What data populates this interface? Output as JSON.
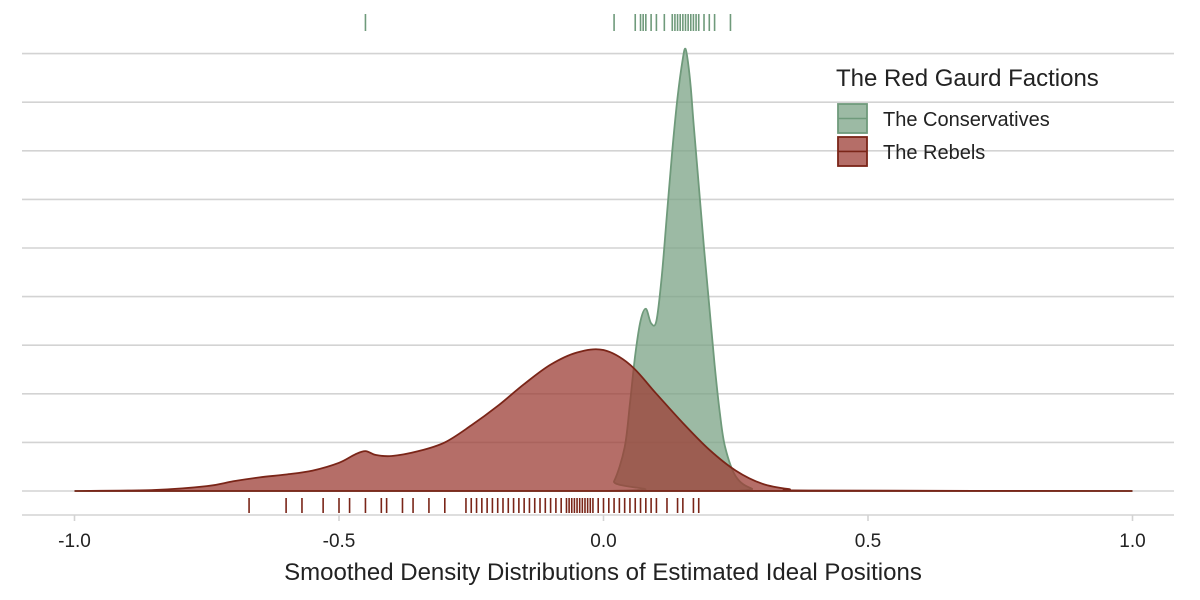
{
  "chart_data": {
    "type": "area",
    "title": "",
    "xlabel": "Smoothed Density Distributions of Estimated Ideal Positions",
    "ylabel": "",
    "xlim": [
      -1.1,
      1.1
    ],
    "ylim": [
      0,
      9.3
    ],
    "x_ticks": [
      -1.0,
      -0.5,
      0.0,
      0.5,
      1.0
    ],
    "x_tick_labels": [
      "-1.0",
      "-0.5",
      "0.0",
      "0.5",
      "1.0"
    ],
    "y_gridlines": [
      0,
      1,
      2,
      3,
      4,
      5,
      6,
      7,
      8,
      9
    ],
    "y_tick_labels_shown": false,
    "grid": "horizontal",
    "legend": {
      "title": "The Red Gaurd Factions",
      "placement": "top-right"
    },
    "series": [
      {
        "name": "The Conservatives",
        "fill": "#7ba386",
        "stroke": "#6f9a7b",
        "x": [
          -1.0,
          0.0,
          0.02,
          0.04,
          0.05,
          0.06,
          0.07,
          0.08,
          0.09,
          0.1,
          0.11,
          0.12,
          0.13,
          0.14,
          0.15,
          0.155,
          0.16,
          0.165,
          0.17,
          0.18,
          0.19,
          0.2,
          0.21,
          0.22,
          0.23,
          0.25,
          0.28,
          0.32,
          1.0
        ],
        "y": [
          0,
          0,
          0.2,
          0.9,
          1.8,
          2.8,
          3.5,
          3.75,
          3.45,
          3.5,
          4.4,
          5.7,
          7.0,
          8.1,
          8.9,
          9.1,
          8.8,
          8.3,
          7.6,
          6.3,
          5.0,
          3.8,
          2.6,
          1.6,
          0.9,
          0.3,
          0.05,
          0,
          0
        ],
        "rug": [
          -0.45,
          0.02,
          0.06,
          0.07,
          0.075,
          0.08,
          0.09,
          0.1,
          0.115,
          0.13,
          0.135,
          0.14,
          0.145,
          0.15,
          0.155,
          0.16,
          0.165,
          0.17,
          0.175,
          0.18,
          0.19,
          0.2,
          0.21,
          0.24
        ]
      },
      {
        "name": "The Rebels",
        "fill": "#9c3d36",
        "stroke": "#7a2518",
        "x": [
          -1.0,
          -0.85,
          -0.75,
          -0.7,
          -0.65,
          -0.6,
          -0.55,
          -0.5,
          -0.47,
          -0.45,
          -0.43,
          -0.4,
          -0.35,
          -0.3,
          -0.25,
          -0.2,
          -0.15,
          -0.1,
          -0.05,
          0.0,
          0.05,
          0.1,
          0.15,
          0.2,
          0.25,
          0.3,
          0.35,
          0.4,
          1.0
        ],
        "y": [
          0,
          0.02,
          0.1,
          0.2,
          0.28,
          0.34,
          0.42,
          0.58,
          0.75,
          0.82,
          0.74,
          0.72,
          0.82,
          1.0,
          1.35,
          1.75,
          2.2,
          2.6,
          2.85,
          2.9,
          2.6,
          2.0,
          1.4,
          0.85,
          0.42,
          0.15,
          0.04,
          0.01,
          0
        ],
        "rug": [
          -0.67,
          -0.6,
          -0.57,
          -0.53,
          -0.5,
          -0.48,
          -0.45,
          -0.42,
          -0.41,
          -0.38,
          -0.36,
          -0.33,
          -0.3,
          -0.26,
          -0.25,
          -0.24,
          -0.23,
          -0.22,
          -0.21,
          -0.2,
          -0.19,
          -0.18,
          -0.17,
          -0.16,
          -0.15,
          -0.14,
          -0.13,
          -0.12,
          -0.11,
          -0.1,
          -0.09,
          -0.08,
          -0.07,
          -0.065,
          -0.06,
          -0.055,
          -0.05,
          -0.045,
          -0.04,
          -0.035,
          -0.03,
          -0.025,
          -0.02,
          -0.01,
          0.0,
          0.01,
          0.02,
          0.03,
          0.04,
          0.05,
          0.06,
          0.07,
          0.08,
          0.09,
          0.1,
          0.12,
          0.14,
          0.15,
          0.17,
          0.18
        ]
      }
    ]
  }
}
